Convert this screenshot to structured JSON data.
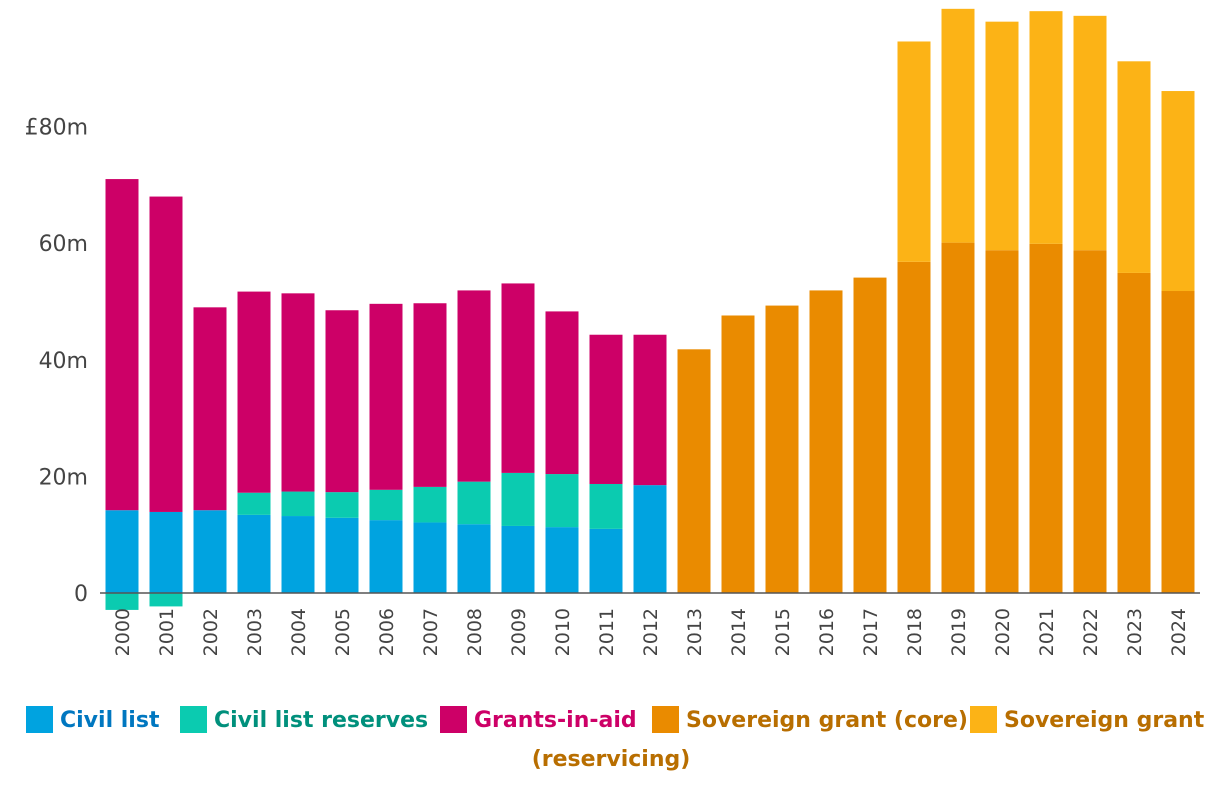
{
  "chart_data": {
    "type": "bar",
    "stacked": true,
    "title": "",
    "xlabel": "",
    "ylabel": "",
    "ylim": [
      -3,
      100
    ],
    "yticks": [
      {
        "value": 0,
        "label": "0"
      },
      {
        "value": 20,
        "label": "20m"
      },
      {
        "value": 40,
        "label": "40m"
      },
      {
        "value": 60,
        "label": "60m"
      },
      {
        "value": 80,
        "label": "£80m"
      }
    ],
    "categories": [
      "2000",
      "2001",
      "2002",
      "2003",
      "2004",
      "2005",
      "2006",
      "2007",
      "2008",
      "2009",
      "2010",
      "2011",
      "2012",
      "2013",
      "2014",
      "2015",
      "2016",
      "2017",
      "2018",
      "2019",
      "2020",
      "2021",
      "2022",
      "2023",
      "2024"
    ],
    "series": [
      {
        "name": "Civil list",
        "color": "#00a3e0",
        "text_color": "#0077c0",
        "values": [
          14.2,
          13.9,
          14.2,
          13.4,
          13.2,
          12.9,
          12.5,
          12.1,
          11.8,
          11.5,
          11.3,
          11.0,
          18.5,
          0,
          0,
          0,
          0,
          0,
          0,
          0,
          0,
          0,
          0,
          0,
          0
        ]
      },
      {
        "name": "Civil list reserves",
        "color": "#0bcbb0",
        "text_color": "#00907c",
        "values": [
          -2.9,
          -2.3,
          0,
          3.8,
          4.2,
          4.4,
          5.2,
          6.1,
          7.3,
          9.1,
          9.1,
          7.7,
          0,
          0,
          0,
          0,
          0,
          0,
          0,
          0,
          0,
          0,
          0,
          0,
          0
        ]
      },
      {
        "name": "Grants-in-aid",
        "color": "#cd0067",
        "text_color": "#cd0067",
        "values": [
          56.8,
          54.1,
          34.8,
          34.5,
          34.0,
          31.2,
          31.9,
          31.5,
          32.8,
          32.5,
          27.9,
          25.6,
          25.8,
          0,
          0,
          0,
          0,
          0,
          0,
          0,
          0,
          0,
          0,
          0,
          0
        ]
      },
      {
        "name": "Sovereign grant (core)",
        "color": "#ea8b00",
        "text_color": "#b86e00",
        "values": [
          0,
          0,
          0,
          0,
          0,
          0,
          0,
          0,
          0,
          0,
          0,
          0,
          0,
          41.8,
          47.6,
          49.3,
          51.9,
          54.1,
          56.8,
          60.1,
          58.8,
          59.9,
          58.8,
          54.9,
          51.8
        ]
      },
      {
        "name": "Sovereign grant (reservicing)",
        "color": "#fcb316",
        "text_color": "#b86e00",
        "values": [
          0,
          0,
          0,
          0,
          0,
          0,
          0,
          0,
          0,
          0,
          0,
          0,
          0,
          0,
          0,
          0,
          0,
          0,
          37.8,
          40.1,
          39.2,
          39.9,
          40.2,
          36.3,
          34.3
        ]
      }
    ],
    "legend": {
      "placement": "bottom",
      "entries": [
        {
          "line1": "Civil list",
          "line2": ""
        },
        {
          "line1": "Civil list reserves",
          "line2": ""
        },
        {
          "line1": "Grants-in-aid",
          "line2": ""
        },
        {
          "line1": "Sovereign grant (core)",
          "line2": ""
        },
        {
          "line1": "Sovereign grant",
          "line2": "(reservicing)"
        }
      ]
    }
  }
}
